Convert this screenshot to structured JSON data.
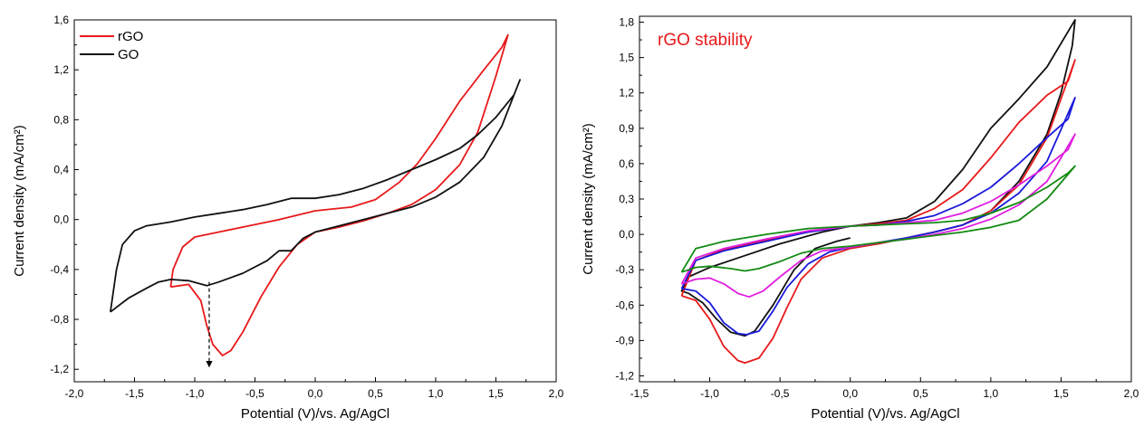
{
  "chart_data": [
    {
      "type": "line",
      "xlabel": "Potential (V)/vs. Ag/AgCl",
      "ylabel": "Current density (mA/cm²)",
      "xlim": [
        -2.0,
        2.0
      ],
      "ylim": [
        -1.3,
        1.6
      ],
      "x_ticks": [
        "-2,0",
        "-1,5",
        "-1,0",
        "-0,5",
        "0,0",
        "0,5",
        "1,0",
        "1,5",
        "2,0"
      ],
      "y_ticks": [
        "-1,2",
        "-0,8",
        "-0,4",
        "0,0",
        "0,4",
        "0,8",
        "1,2",
        "1,6"
      ],
      "legend": "top-left",
      "grid": false,
      "series": [
        {
          "name": "rGO",
          "color": "#e8191a",
          "points": [
            [
              -1.2,
              -0.54
            ],
            [
              -1.05,
              -0.52
            ],
            [
              -0.95,
              -0.65
            ],
            [
              -0.9,
              -0.85
            ],
            [
              -0.85,
              -1.0
            ],
            [
              -0.77,
              -1.09
            ],
            [
              -0.7,
              -1.05
            ],
            [
              -0.6,
              -0.9
            ],
            [
              -0.45,
              -0.62
            ],
            [
              -0.3,
              -0.38
            ],
            [
              -0.15,
              -0.2
            ],
            [
              0.0,
              -0.1
            ],
            [
              0.2,
              -0.06
            ],
            [
              0.4,
              -0.01
            ],
            [
              0.6,
              0.05
            ],
            [
              0.8,
              0.12
            ],
            [
              1.0,
              0.24
            ],
            [
              1.2,
              0.44
            ],
            [
              1.35,
              0.7
            ],
            [
              1.5,
              1.15
            ],
            [
              1.6,
              1.48
            ],
            [
              1.55,
              1.38
            ],
            [
              1.4,
              1.2
            ],
            [
              1.2,
              0.95
            ],
            [
              1.0,
              0.65
            ],
            [
              0.85,
              0.45
            ],
            [
              0.7,
              0.3
            ],
            [
              0.5,
              0.16
            ],
            [
              0.3,
              0.1
            ],
            [
              0.0,
              0.07
            ],
            [
              -0.3,
              0.0
            ],
            [
              -0.6,
              -0.06
            ],
            [
              -0.8,
              -0.1
            ],
            [
              -1.0,
              -0.14
            ],
            [
              -1.1,
              -0.22
            ],
            [
              -1.18,
              -0.4
            ],
            [
              -1.2,
              -0.54
            ]
          ]
        },
        {
          "name": "GO",
          "color": "#111111",
          "points": [
            [
              -1.7,
              -0.74
            ],
            [
              -1.55,
              -0.63
            ],
            [
              -1.4,
              -0.55
            ],
            [
              -1.3,
              -0.5
            ],
            [
              -1.2,
              -0.48
            ],
            [
              -1.05,
              -0.49
            ],
            [
              -0.9,
              -0.53
            ],
            [
              -0.8,
              -0.5
            ],
            [
              -0.6,
              -0.43
            ],
            [
              -0.4,
              -0.33
            ],
            [
              -0.3,
              -0.25
            ],
            [
              -0.2,
              -0.25
            ],
            [
              -0.1,
              -0.15
            ],
            [
              0.0,
              -0.1
            ],
            [
              0.2,
              -0.05
            ],
            [
              0.4,
              0.0
            ],
            [
              0.6,
              0.05
            ],
            [
              0.8,
              0.1
            ],
            [
              1.0,
              0.18
            ],
            [
              1.2,
              0.3
            ],
            [
              1.4,
              0.5
            ],
            [
              1.55,
              0.75
            ],
            [
              1.65,
              1.0
            ],
            [
              1.7,
              1.12
            ],
            [
              1.65,
              1.0
            ],
            [
              1.5,
              0.82
            ],
            [
              1.35,
              0.68
            ],
            [
              1.2,
              0.57
            ],
            [
              1.0,
              0.48
            ],
            [
              0.8,
              0.4
            ],
            [
              0.6,
              0.32
            ],
            [
              0.4,
              0.25
            ],
            [
              0.2,
              0.2
            ],
            [
              0.0,
              0.17
            ],
            [
              -0.2,
              0.17
            ],
            [
              -0.4,
              0.12
            ],
            [
              -0.6,
              0.08
            ],
            [
              -0.8,
              0.05
            ],
            [
              -1.0,
              0.02
            ],
            [
              -1.2,
              -0.02
            ],
            [
              -1.4,
              -0.05
            ],
            [
              -1.5,
              -0.09
            ],
            [
              -1.6,
              -0.2
            ],
            [
              -1.65,
              -0.4
            ],
            [
              -1.7,
              -0.74
            ]
          ]
        }
      ],
      "annotation": {
        "x_from": -0.88,
        "y_from": -0.5,
        "x_to": -0.88,
        "y_to": -1.18,
        "style": "dashed-arrow"
      }
    },
    {
      "type": "line",
      "title": "rGO stability",
      "xlabel": "Potential (V)/vs. Ag/AgCl",
      "ylabel": "Current density (mA/cm²)",
      "xlim": [
        -1.5,
        2.0
      ],
      "ylim": [
        -1.25,
        1.85
      ],
      "x_ticks": [
        "-1,5",
        "-1,0",
        "-0,5",
        "0,0",
        "0,5",
        "1,0",
        "1,5",
        "2,0"
      ],
      "y_ticks": [
        "-1,2",
        "-0,9",
        "-0,6",
        "-0,3",
        "0,0",
        "0,3",
        "0,6",
        "0,9",
        "1,2",
        "1,5",
        "1,8"
      ],
      "grid": false,
      "series": [
        {
          "color": "#111111",
          "points": [
            [
              0.0,
              -0.03
            ],
            [
              -0.1,
              -0.06
            ],
            [
              -0.25,
              -0.12
            ],
            [
              -0.4,
              -0.3
            ],
            [
              -0.55,
              -0.6
            ],
            [
              -0.68,
              -0.82
            ],
            [
              -0.75,
              -0.86
            ],
            [
              -0.85,
              -0.83
            ],
            [
              -0.95,
              -0.72
            ],
            [
              -1.05,
              -0.58
            ],
            [
              -1.15,
              -0.5
            ],
            [
              -1.2,
              -0.48
            ],
            [
              -1.15,
              -0.36
            ],
            [
              -1.0,
              -0.28
            ],
            [
              -0.8,
              -0.2
            ],
            [
              -0.5,
              -0.08
            ],
            [
              -0.2,
              0.02
            ],
            [
              0.0,
              0.07
            ],
            [
              0.2,
              0.1
            ],
            [
              0.4,
              0.14
            ],
            [
              0.6,
              0.28
            ],
            [
              0.8,
              0.55
            ],
            [
              1.0,
              0.9
            ],
            [
              1.2,
              1.15
            ],
            [
              1.4,
              1.42
            ],
            [
              1.6,
              1.82
            ],
            [
              1.58,
              1.6
            ],
            [
              1.5,
              1.2
            ],
            [
              1.4,
              0.85
            ],
            [
              1.2,
              0.45
            ],
            [
              1.0,
              0.2
            ],
            [
              0.8,
              0.08
            ],
            [
              0.6,
              0.02
            ],
            [
              0.4,
              -0.03
            ],
            [
              0.2,
              -0.08
            ],
            [
              0.0,
              -0.11
            ],
            [
              -0.1,
              -0.13
            ]
          ]
        },
        {
          "color": "#e8191a",
          "points": [
            [
              -1.2,
              -0.52
            ],
            [
              -1.1,
              -0.56
            ],
            [
              -1.0,
              -0.72
            ],
            [
              -0.9,
              -0.95
            ],
            [
              -0.8,
              -1.07
            ],
            [
              -0.75,
              -1.09
            ],
            [
              -0.65,
              -1.05
            ],
            [
              -0.55,
              -0.88
            ],
            [
              -0.45,
              -0.62
            ],
            [
              -0.35,
              -0.38
            ],
            [
              -0.2,
              -0.2
            ],
            [
              0.0,
              -0.12
            ],
            [
              0.2,
              -0.08
            ],
            [
              0.4,
              -0.03
            ],
            [
              0.6,
              0.02
            ],
            [
              0.8,
              0.08
            ],
            [
              1.0,
              0.2
            ],
            [
              1.2,
              0.42
            ],
            [
              1.4,
              0.82
            ],
            [
              1.6,
              1.48
            ],
            [
              1.55,
              1.3
            ],
            [
              1.4,
              1.18
            ],
            [
              1.2,
              0.95
            ],
            [
              1.0,
              0.65
            ],
            [
              0.8,
              0.38
            ],
            [
              0.6,
              0.22
            ],
            [
              0.4,
              0.12
            ],
            [
              0.2,
              0.09
            ],
            [
              0.0,
              0.07
            ],
            [
              -0.3,
              0.02
            ],
            [
              -0.6,
              -0.05
            ],
            [
              -0.9,
              -0.13
            ],
            [
              -1.1,
              -0.22
            ],
            [
              -1.2,
              -0.52
            ]
          ]
        },
        {
          "color": "#1a1adb",
          "points": [
            [
              -1.2,
              -0.46
            ],
            [
              -1.1,
              -0.48
            ],
            [
              -1.0,
              -0.58
            ],
            [
              -0.9,
              -0.75
            ],
            [
              -0.8,
              -0.84
            ],
            [
              -0.74,
              -0.85
            ],
            [
              -0.65,
              -0.82
            ],
            [
              -0.55,
              -0.65
            ],
            [
              -0.45,
              -0.45
            ],
            [
              -0.3,
              -0.25
            ],
            [
              -0.15,
              -0.15
            ],
            [
              0.0,
              -0.11
            ],
            [
              0.2,
              -0.07
            ],
            [
              0.4,
              -0.03
            ],
            [
              0.6,
              0.02
            ],
            [
              0.8,
              0.08
            ],
            [
              1.0,
              0.18
            ],
            [
              1.2,
              0.35
            ],
            [
              1.4,
              0.62
            ],
            [
              1.6,
              1.16
            ],
            [
              1.55,
              0.98
            ],
            [
              1.4,
              0.82
            ],
            [
              1.2,
              0.6
            ],
            [
              1.0,
              0.4
            ],
            [
              0.8,
              0.26
            ],
            [
              0.6,
              0.16
            ],
            [
              0.4,
              0.11
            ],
            [
              0.2,
              0.08
            ],
            [
              0.0,
              0.07
            ],
            [
              -0.3,
              0.02
            ],
            [
              -0.6,
              -0.06
            ],
            [
              -0.9,
              -0.14
            ],
            [
              -1.1,
              -0.22
            ],
            [
              -1.2,
              -0.46
            ]
          ]
        },
        {
          "color": "#e01ee0",
          "points": [
            [
              -1.2,
              -0.42
            ],
            [
              -1.1,
              -0.38
            ],
            [
              -1.0,
              -0.37
            ],
            [
              -0.9,
              -0.42
            ],
            [
              -0.8,
              -0.5
            ],
            [
              -0.72,
              -0.53
            ],
            [
              -0.62,
              -0.48
            ],
            [
              -0.5,
              -0.36
            ],
            [
              -0.35,
              -0.22
            ],
            [
              -0.2,
              -0.14
            ],
            [
              0.0,
              -0.11
            ],
            [
              0.2,
              -0.07
            ],
            [
              0.4,
              -0.04
            ],
            [
              0.6,
              0.0
            ],
            [
              0.8,
              0.05
            ],
            [
              1.0,
              0.13
            ],
            [
              1.2,
              0.25
            ],
            [
              1.4,
              0.45
            ],
            [
              1.6,
              0.85
            ],
            [
              1.55,
              0.72
            ],
            [
              1.4,
              0.58
            ],
            [
              1.2,
              0.42
            ],
            [
              1.0,
              0.28
            ],
            [
              0.8,
              0.18
            ],
            [
              0.6,
              0.12
            ],
            [
              0.4,
              0.1
            ],
            [
              0.2,
              0.08
            ],
            [
              0.0,
              0.07
            ],
            [
              -0.3,
              0.03
            ],
            [
              -0.6,
              -0.04
            ],
            [
              -0.9,
              -0.12
            ],
            [
              -1.1,
              -0.2
            ],
            [
              -1.2,
              -0.42
            ]
          ]
        },
        {
          "color": "#138a13",
          "points": [
            [
              -1.2,
              -0.32
            ],
            [
              -1.1,
              -0.28
            ],
            [
              -1.0,
              -0.27
            ],
            [
              -0.85,
              -0.29
            ],
            [
              -0.75,
              -0.31
            ],
            [
              -0.65,
              -0.29
            ],
            [
              -0.5,
              -0.23
            ],
            [
              -0.35,
              -0.16
            ],
            [
              -0.2,
              -0.12
            ],
            [
              0.0,
              -0.1
            ],
            [
              0.2,
              -0.07
            ],
            [
              0.4,
              -0.04
            ],
            [
              0.6,
              -0.01
            ],
            [
              0.8,
              0.02
            ],
            [
              1.0,
              0.06
            ],
            [
              1.2,
              0.12
            ],
            [
              1.4,
              0.3
            ],
            [
              1.6,
              0.58
            ],
            [
              1.55,
              0.52
            ],
            [
              1.4,
              0.4
            ],
            [
              1.2,
              0.27
            ],
            [
              1.0,
              0.18
            ],
            [
              0.8,
              0.12
            ],
            [
              0.6,
              0.1
            ],
            [
              0.4,
              0.09
            ],
            [
              0.2,
              0.08
            ],
            [
              0.0,
              0.07
            ],
            [
              -0.3,
              0.05
            ],
            [
              -0.6,
              0.0
            ],
            [
              -0.9,
              -0.06
            ],
            [
              -1.1,
              -0.12
            ],
            [
              -1.2,
              -0.32
            ]
          ]
        }
      ]
    }
  ]
}
